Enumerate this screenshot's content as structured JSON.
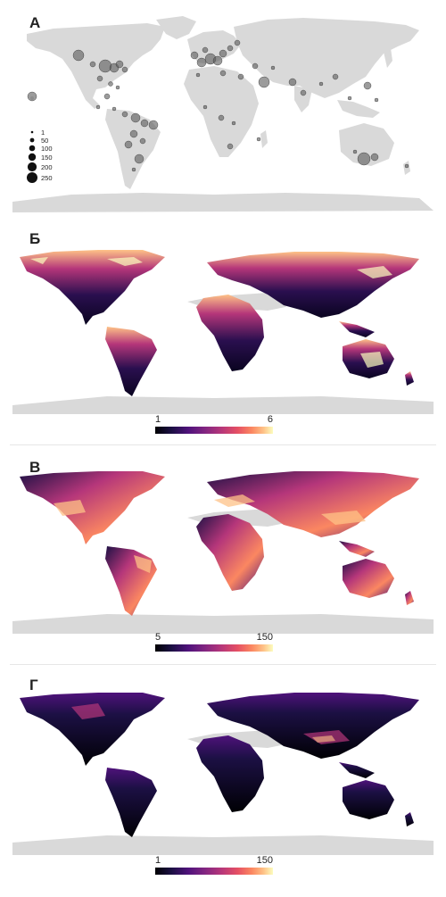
{
  "panels": [
    {
      "id": "A",
      "label": "А"
    },
    {
      "id": "B",
      "label": "Б",
      "colorbar": {
        "min": "1",
        "max": "6"
      }
    },
    {
      "id": "C",
      "label": "В",
      "colorbar": {
        "min": "5",
        "max": "150"
      }
    },
    {
      "id": "D",
      "label": "Г",
      "colorbar": {
        "min": "1",
        "max": "150"
      }
    }
  ],
  "size_legend": [
    "1",
    "50",
    "100",
    "150",
    "200",
    "250"
  ],
  "colors": {
    "land": "#d9d9d9",
    "ocean": "#ffffff",
    "point": "#5a5a5a"
  }
}
